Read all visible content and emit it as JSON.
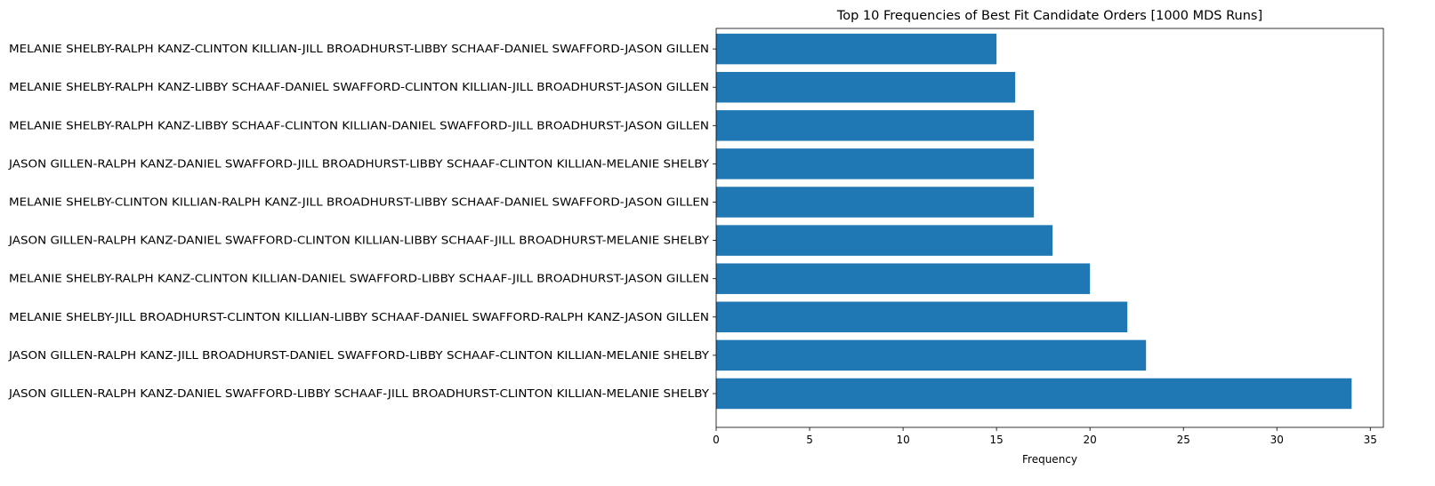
{
  "chart_data": {
    "type": "bar",
    "orientation": "horizontal",
    "title": "Top 10 Frequencies of Best Fit Candidate Orders [1000 MDS Runs]",
    "xlabel": "Frequency",
    "ylabel": "",
    "xlim": [
      0,
      35.7
    ],
    "xticks": [
      0,
      5,
      10,
      15,
      20,
      25,
      30,
      35
    ],
    "grid": false,
    "bar_color": "#1f77b4",
    "categories": [
      "JASON GILLEN-RALPH KANZ-DANIEL SWAFFORD-LIBBY SCHAAF-JILL BROADHURST-CLINTON KILLIAN-MELANIE SHELBY",
      "JASON GILLEN-RALPH KANZ-JILL BROADHURST-DANIEL SWAFFORD-LIBBY SCHAAF-CLINTON KILLIAN-MELANIE SHELBY",
      "MELANIE SHELBY-JILL BROADHURST-CLINTON KILLIAN-LIBBY SCHAAF-DANIEL SWAFFORD-RALPH KANZ-JASON GILLEN",
      "MELANIE SHELBY-RALPH KANZ-CLINTON KILLIAN-DANIEL SWAFFORD-LIBBY SCHAAF-JILL BROADHURST-JASON GILLEN",
      "JASON GILLEN-RALPH KANZ-DANIEL SWAFFORD-CLINTON KILLIAN-LIBBY SCHAAF-JILL BROADHURST-MELANIE SHELBY",
      "MELANIE SHELBY-CLINTON KILLIAN-RALPH KANZ-JILL BROADHURST-LIBBY SCHAAF-DANIEL SWAFFORD-JASON GILLEN",
      "JASON GILLEN-RALPH KANZ-DANIEL SWAFFORD-JILL BROADHURST-LIBBY SCHAAF-CLINTON KILLIAN-MELANIE SHELBY",
      "MELANIE SHELBY-RALPH KANZ-LIBBY SCHAAF-CLINTON KILLIAN-DANIEL SWAFFORD-JILL BROADHURST-JASON GILLEN",
      "MELANIE SHELBY-RALPH KANZ-LIBBY SCHAAF-DANIEL SWAFFORD-CLINTON KILLIAN-JILL BROADHURST-JASON GILLEN",
      "MELANIE SHELBY-RALPH KANZ-CLINTON KILLIAN-JILL BROADHURST-LIBBY SCHAAF-DANIEL SWAFFORD-JASON GILLEN"
    ],
    "values": [
      34,
      23,
      22,
      20,
      18,
      17,
      17,
      17,
      16,
      15
    ]
  }
}
